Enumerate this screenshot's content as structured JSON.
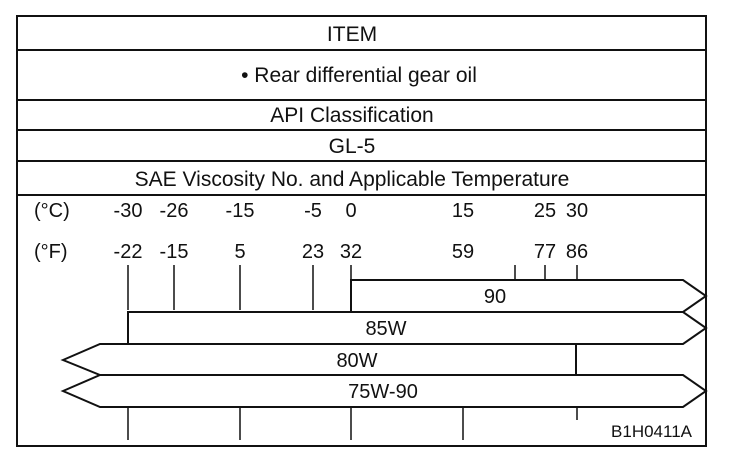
{
  "item_header": "ITEM",
  "item_value": "• Rear differential gear oil",
  "api_header": "API Classification",
  "api_value": "GL-5",
  "sae_header": "SAE Viscosity No. and Applicable Temperature",
  "celsius_label": "(°C)",
  "fahrenheit_label": "(°F)",
  "celsius_ticks": [
    "-30",
    "-26",
    "-15",
    "-5",
    "0",
    "15",
    "25",
    "30"
  ],
  "fahrenheit_ticks": [
    "-22",
    "-15",
    "5",
    "23",
    "32",
    "59",
    "77",
    "86"
  ],
  "grades": [
    {
      "label": "90",
      "from_c": 0,
      "to": "above"
    },
    {
      "label": "85W",
      "from_c": -30,
      "to": "above"
    },
    {
      "label": "80W",
      "from": "below",
      "to_c": 30
    },
    {
      "label": "75W-90",
      "from": "below",
      "to": "above"
    }
  ],
  "figure_id": "B1H0411A"
}
